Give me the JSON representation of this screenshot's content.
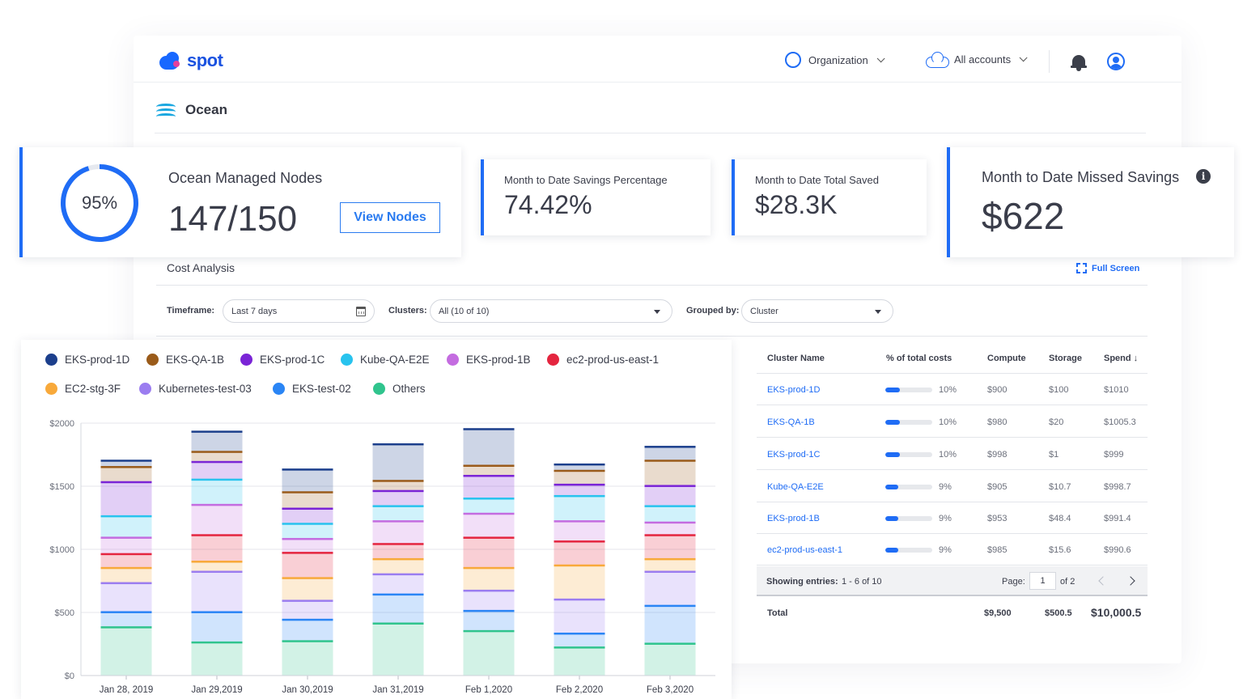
{
  "header": {
    "logo_text": "spot",
    "organization_label": "Organization",
    "accounts_label": "All accounts"
  },
  "page": {
    "title": "Ocean"
  },
  "kpis": {
    "nodes": {
      "label": "Ocean Managed Nodes",
      "value": "147/150",
      "percent_text": "95%",
      "percent": 95,
      "button": "View Nodes"
    },
    "savings_pct": {
      "label": "Month to Date Savings Percentage",
      "value": "74.42%"
    },
    "total_saved": {
      "label": "Month to Date Total Saved",
      "value": "$28.3K"
    },
    "missed": {
      "label": "Month to Date Missed Savings",
      "value": "$622",
      "info": "i"
    }
  },
  "cost_analysis": {
    "title": "Cost Analysis",
    "fullscreen_label": "Full Screen",
    "filters": {
      "timeframe_label": "Timeframe:",
      "timeframe_value": "Last 7 days",
      "clusters_label": "Clusters:",
      "clusters_value": "All (10 of 10)",
      "grouped_label": "Grouped by:",
      "grouped_value": "Cluster"
    }
  },
  "legend": [
    {
      "name": "EKS-prod-1D",
      "color": "#1c3f8c"
    },
    {
      "name": "EKS-QA-1B",
      "color": "#9a5b1a"
    },
    {
      "name": "EKS-prod-1C",
      "color": "#7a24d6"
    },
    {
      "name": "Kube-QA-E2E",
      "color": "#28c3ee"
    },
    {
      "name": "EKS-prod-1B",
      "color": "#c46ce0"
    },
    {
      "name": "ec2-prod-us-east-1",
      "color": "#e4253f"
    },
    {
      "name": "EC2-stg-3F",
      "color": "#f8a93a"
    },
    {
      "name": "Kubernetes-test-03",
      "color": "#9b7df0"
    },
    {
      "name": "EKS-test-02",
      "color": "#2a85f5"
    },
    {
      "name": "Others",
      "color": "#30c48d"
    }
  ],
  "chart_data": {
    "type": "bar",
    "stacked": true,
    "categories": [
      "Jan 28, 2019",
      "Jan 29,2019",
      "Jan 30,2019",
      "Jan 31,2019",
      "Feb 1,2020",
      "Feb 2,2020",
      "Feb 3,2020"
    ],
    "y_ticks": [
      "$0",
      "$500",
      "$1000",
      "$1500",
      "$2000"
    ],
    "ylim": [
      0,
      2000
    ],
    "grid": true,
    "legend_position": "top",
    "series": [
      {
        "name": "Others",
        "values": [
          390,
          270,
          280,
          420,
          360,
          230,
          260
        ]
      },
      {
        "name": "EKS-test-02",
        "values": [
          120,
          240,
          170,
          230,
          160,
          110,
          300
        ]
      },
      {
        "name": "Kubernetes-test-03",
        "values": [
          230,
          320,
          150,
          160,
          160,
          270,
          270
        ]
      },
      {
        "name": "EC2-stg-3F",
        "values": [
          120,
          80,
          180,
          120,
          180,
          270,
          100
        ]
      },
      {
        "name": "ec2-prod-us-east-1",
        "values": [
          110,
          210,
          200,
          120,
          240,
          190,
          190
        ]
      },
      {
        "name": "EKS-prod-1B",
        "values": [
          130,
          240,
          110,
          180,
          190,
          160,
          100
        ]
      },
      {
        "name": "Kube-QA-E2E",
        "values": [
          170,
          200,
          120,
          120,
          120,
          200,
          130
        ]
      },
      {
        "name": "EKS-prod-1C",
        "values": [
          270,
          140,
          120,
          120,
          180,
          90,
          160
        ]
      },
      {
        "name": "EKS-QA-1B",
        "values": [
          120,
          80,
          130,
          80,
          80,
          110,
          200
        ]
      },
      {
        "name": "EKS-prod-1D",
        "values": [
          50,
          160,
          180,
          290,
          290,
          50,
          110
        ]
      }
    ]
  },
  "table": {
    "headers": {
      "name": "Cluster Name",
      "pct": "% of total costs",
      "compute": "Compute",
      "storage": "Storage",
      "spend": "Spend ↓"
    },
    "rows": [
      {
        "name": "EKS-prod-1D",
        "pct": "10%",
        "pct_value": 10,
        "compute": "$900",
        "storage": "$100",
        "spend": "$1010"
      },
      {
        "name": "EKS-QA-1B",
        "pct": "10%",
        "pct_value": 10,
        "compute": "$980",
        "storage": "$20",
        "spend": "$1005.3"
      },
      {
        "name": "EKS-prod-1C",
        "pct": "10%",
        "pct_value": 10,
        "compute": "$998",
        "storage": "$1",
        "spend": "$999"
      },
      {
        "name": "Kube-QA-E2E",
        "pct": "9%",
        "pct_value": 9,
        "compute": "$905",
        "storage": "$10.7",
        "spend": "$998.7"
      },
      {
        "name": "EKS-prod-1B",
        "pct": "9%",
        "pct_value": 9,
        "compute": "$953",
        "storage": "$48.4",
        "spend": "$991.4"
      },
      {
        "name": "ec2-prod-us-east-1",
        "pct": "9%",
        "pct_value": 9,
        "compute": "$985",
        "storage": "$15.6",
        "spend": "$990.6"
      }
    ],
    "pager": {
      "showing_label": "Showing entries:",
      "showing_value": "1 - 6 of 10",
      "page_label": "Page:",
      "page_value": "1",
      "of_label": "of 2"
    },
    "total": {
      "label": "Total",
      "compute": "$9,500",
      "storage": "$500.5",
      "spend": "$10,000.5"
    }
  }
}
